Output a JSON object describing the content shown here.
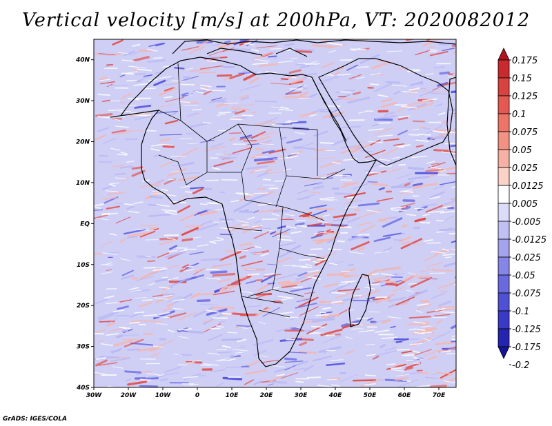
{
  "title": "Vertical velocity [m/s] at 200hPa, VT: 2020082012",
  "credit": "GrADS: IGES/COLA",
  "map": {
    "lat_labels": [
      "40N",
      "30N",
      "20N",
      "10N",
      "EQ",
      "10S",
      "20S",
      "30S",
      "40S"
    ],
    "lon_labels": [
      "30W",
      "20W",
      "10W",
      "0",
      "10E",
      "20E",
      "30E",
      "40E",
      "50E",
      "60E",
      "70E"
    ],
    "lat_range": [
      -40,
      45
    ],
    "lon_range": [
      -30,
      75
    ],
    "colors": {
      "positive": "#e34a44",
      "negative": "#5555e0",
      "positive_light": "#f4b6b0",
      "negative_light": "#b8b8f4",
      "coast": "#000000"
    }
  },
  "colorbar": {
    "labels": [
      "0.175",
      "0.15",
      "0.125",
      "0.1",
      "0.075",
      "0.05",
      "0.025",
      "0.0125",
      "0.005",
      "-0.005",
      "-0.0125",
      "-0.025",
      "-0.05",
      "-0.075",
      "-0.1",
      "-0.125",
      "-0.175",
      "-0.2"
    ],
    "colors": [
      "#b4141e",
      "#c82a2e",
      "#d84340",
      "#e45a52",
      "#ec7568",
      "#f19285",
      "#f6b0a4",
      "#fad2c8",
      "#ffffff",
      "#dcdcfa",
      "#c0c0f4",
      "#a4a4ee",
      "#8686e6",
      "#6a6ade",
      "#5050d4",
      "#3a3ac6",
      "#2424b0",
      "#141496"
    ]
  }
}
